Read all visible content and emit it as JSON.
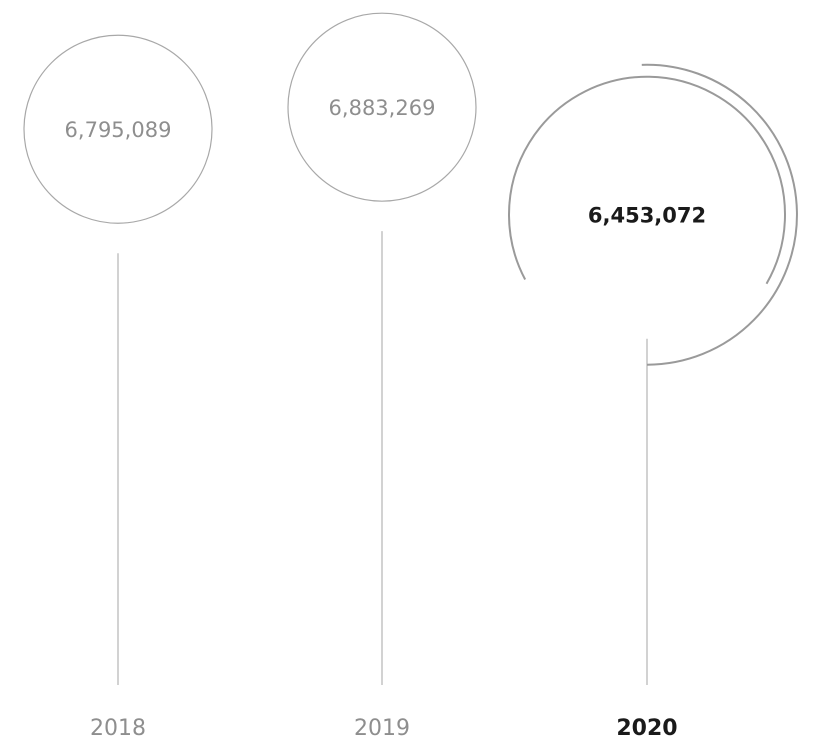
{
  "chart_data": {
    "type": "bubble-timeline",
    "categories": [
      "2018",
      "2019",
      "2020"
    ],
    "values": [
      6795089,
      6883269,
      6453072
    ],
    "value_labels": [
      "6,795,089",
      "6,883,269",
      "6,453,072"
    ],
    "highlight": "2020",
    "colors": {
      "line": "#b5b5b5",
      "circle": "#a8a8a8",
      "highlight_arc": "#9a9a9a",
      "muted_text": "#8e8e8e",
      "highlight_text": "#1a1a1a"
    }
  }
}
